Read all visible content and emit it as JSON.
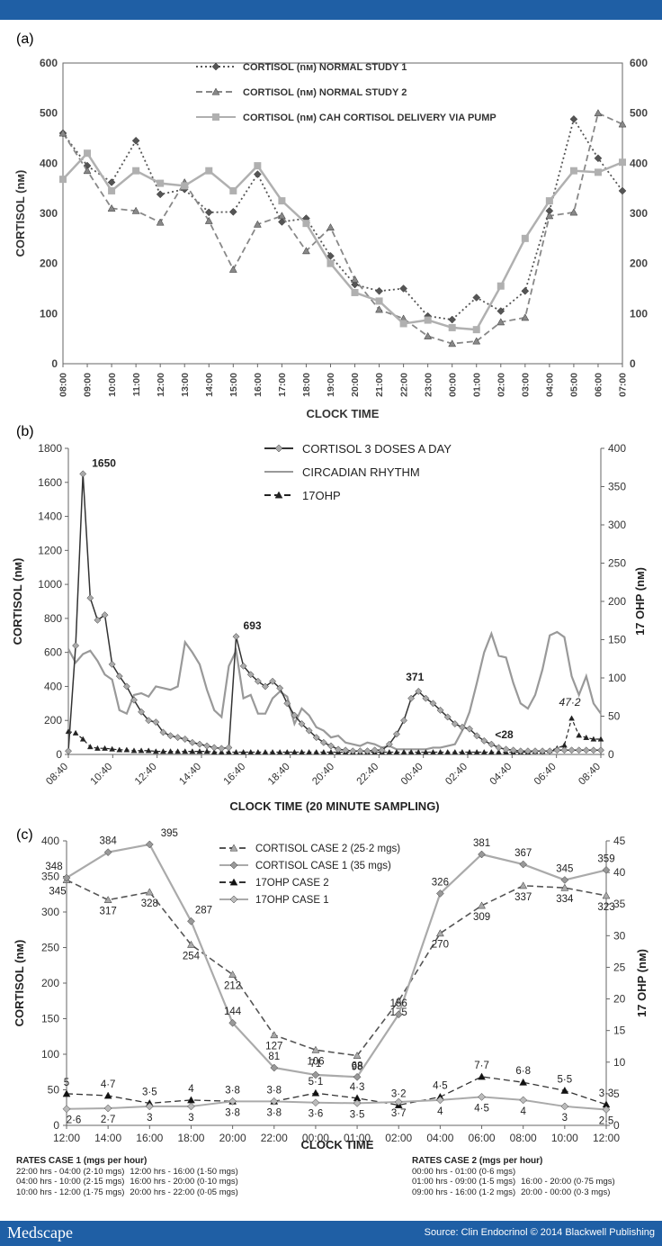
{
  "footer": {
    "brand": "Medscape",
    "source": "Source: Clin Endocrinol © 2014 Blackwell Publishing"
  },
  "colors": {
    "header_bar": "#1f5fa5",
    "series_dark": "#555555",
    "series_mid": "#888888",
    "series_light": "#b0b0b0"
  },
  "rates": {
    "case1": {
      "title": "RATES CASE 1 (mgs per hour)",
      "items": [
        "22:00 hrs - 04:00 (2·10 mgs)",
        "12:00 hrs - 16:00 (1·50 mgs)",
        "04:00 hrs - 10:00 (2·15 mgs)",
        "16:00 hrs - 20:00 (0·10 mgs)",
        "10:00 hrs - 12:00 (1·75 mgs)",
        "20:00 hrs - 22:00 (0·05 mgs)"
      ]
    },
    "case2": {
      "title": "RATES CASE 2 (mgs per hour)",
      "items": [
        "00:00 hrs - 01:00 (0·6 mgs)",
        "16:00 - 20:00 (0·75 mgs)",
        "01:00 hrs - 09:00 (1·5 mgs)",
        "20:00 - 00:00 (0·3 mgs)",
        "09:00 hrs - 16:00 (1·2 mgs)",
        ""
      ]
    }
  },
  "chart_data": [
    {
      "panel_label": "(a)",
      "type": "line",
      "xlabel": "CLOCK TIME",
      "ylabel": "CORTISOL (nм)",
      "categories": [
        "08:00",
        "09:00",
        "10:00",
        "11:00",
        "12:00",
        "13:00",
        "14:00",
        "15:00",
        "16:00",
        "17:00",
        "18:00",
        "19:00",
        "20:00",
        "21:00",
        "22:00",
        "23:00",
        "00:00",
        "01:00",
        "02:00",
        "03:00",
        "04:00",
        "05:00",
        "06:00",
        "07:00"
      ],
      "ylim": [
        0,
        600
      ],
      "yticks": [
        "0",
        "100",
        "200",
        "300",
        "400",
        "500",
        "600"
      ],
      "legend_position": "top-right",
      "series": [
        {
          "name": "CORTISOL (nм) NORMAL STUDY 1",
          "style": "dotted",
          "marker": "diamond",
          "color": "#555555",
          "values": [
            460,
            395,
            362,
            445,
            338,
            348,
            302,
            303,
            378,
            283,
            290,
            215,
            158,
            145,
            150,
            95,
            88,
            132,
            105,
            145,
            305,
            488,
            410,
            345
          ]
        },
        {
          "name": "CORTISOL (nм) NORMAL STUDY 2",
          "style": "dashed",
          "marker": "triangle",
          "color": "#888888",
          "values": [
            460,
            385,
            310,
            305,
            282,
            362,
            285,
            188,
            278,
            295,
            225,
            272,
            168,
            108,
            90,
            55,
            40,
            45,
            83,
            92,
            295,
            302,
            500,
            478
          ]
        },
        {
          "name": "CORTISOL (nм) CAH CORTISOL DELIVERY VIA PUMP",
          "style": "solid",
          "marker": "square",
          "color": "#b0b0b0",
          "values": [
            368,
            420,
            345,
            385,
            360,
            355,
            385,
            345,
            395,
            325,
            280,
            200,
            142,
            125,
            80,
            87,
            72,
            68,
            155,
            250,
            325,
            385,
            382,
            402
          ]
        }
      ]
    },
    {
      "panel_label": "(b)",
      "type": "line",
      "xlabel": "CLOCK TIME (20 MINUTE SAMPLING)",
      "ylabel": "CORTISOL (nм)",
      "ylabel_right": "17 OHP (nм)",
      "x_start": "08:40",
      "x_step_minutes": 20,
      "x_ticks": [
        "08:40",
        "10:40",
        "12:40",
        "14:40",
        "16:40",
        "18:40",
        "20:40",
        "22:40",
        "00:40",
        "02:40",
        "04:40",
        "06:40",
        "08:40"
      ],
      "ylim": [
        0,
        1800
      ],
      "yticks": [
        "0",
        "200",
        "400",
        "600",
        "800",
        "1000",
        "1200",
        "1400",
        "1600",
        "1800"
      ],
      "ylim_right": [
        0,
        400
      ],
      "yticks_right": [
        "0",
        "50",
        "100",
        "150",
        "200",
        "250",
        "300",
        "350",
        "400"
      ],
      "legend_position": "top-center",
      "annotations": [
        "1650",
        "693",
        "371",
        "<28",
        "47·2"
      ],
      "series": [
        {
          "name": "CORTISOL 3 DOSES A DAY",
          "style": "solid",
          "marker": "diamond",
          "color": "#333333",
          "axis": "left",
          "values": [
            20,
            640,
            1650,
            920,
            790,
            820,
            530,
            460,
            400,
            320,
            250,
            200,
            190,
            130,
            110,
            100,
            90,
            70,
            60,
            50,
            40,
            35,
            40,
            693,
            520,
            470,
            430,
            400,
            430,
            390,
            300,
            230,
            180,
            140,
            100,
            70,
            50,
            30,
            25,
            20,
            20,
            20,
            25,
            25,
            60,
            120,
            200,
            330,
            371,
            330,
            300,
            260,
            220,
            180,
            160,
            150,
            110,
            80,
            60,
            40,
            30,
            25,
            20,
            20,
            20,
            20,
            20,
            25,
            25,
            25,
            25,
            25,
            25,
            25
          ]
        },
        {
          "name": "CIRCADIAN RHYTHM",
          "style": "solid",
          "marker": "none",
          "color": "#999999",
          "axis": "left",
          "values": [
            620,
            540,
            590,
            610,
            550,
            470,
            440,
            260,
            240,
            350,
            360,
            340,
            400,
            390,
            380,
            400,
            660,
            600,
            530,
            380,
            260,
            220,
            520,
            610,
            330,
            350,
            240,
            240,
            330,
            370,
            340,
            180,
            270,
            230,
            160,
            140,
            100,
            110,
            70,
            60,
            50,
            70,
            60,
            40,
            50,
            30,
            30,
            30,
            30,
            30,
            40,
            40,
            50,
            60,
            140,
            250,
            420,
            600,
            710,
            580,
            570,
            420,
            300,
            270,
            350,
            500,
            700,
            720,
            690,
            460,
            350,
            460,
            300,
            240
          ]
        },
        {
          "name": "17OHP",
          "style": "dashed",
          "marker": "triangle",
          "color": "#222222",
          "axis": "right",
          "values": [
            30,
            28,
            20,
            10,
            8,
            8,
            7,
            6,
            6,
            5,
            5,
            5,
            4,
            4,
            4,
            4,
            4,
            4,
            4,
            4,
            3,
            3,
            3,
            3,
            3,
            3,
            3,
            3,
            3,
            3,
            3,
            3,
            3,
            3,
            3,
            3,
            3,
            3,
            3,
            3,
            3,
            3,
            3,
            3,
            3,
            3,
            3,
            3,
            3,
            3,
            3,
            3,
            3,
            3,
            3,
            3,
            3,
            3,
            3,
            3,
            3,
            3,
            3,
            3,
            4,
            4,
            5,
            8,
            12,
            47.2,
            25,
            22,
            20,
            20
          ]
        }
      ]
    },
    {
      "panel_label": "(c)",
      "type": "line",
      "xlabel": "CLOCK TIME",
      "ylabel": "CORTISOL (nм)",
      "ylabel_right": "17 OHP (nм)",
      "categories": [
        "12:00",
        "14:00",
        "16:00",
        "18:00",
        "20:00",
        "22:00",
        "00:00",
        "01:00",
        "02:00",
        "04:00",
        "06:00",
        "08:00",
        "10:00",
        "12:00"
      ],
      "ylim": [
        0,
        400
      ],
      "yticks": [
        "0",
        "50",
        "100",
        "150",
        "200",
        "250",
        "300",
        "350",
        "400"
      ],
      "ylim_right": [
        0,
        45
      ],
      "yticks_right": [
        "0",
        "5",
        "10",
        "15",
        "20",
        "25",
        "30",
        "35",
        "40",
        "45"
      ],
      "legend_position": "top-center",
      "series": [
        {
          "name": "CORTISOL CASE 2 (25·2 mgs)",
          "style": "dashed",
          "marker": "triangle",
          "color": "#555555",
          "axis": "left",
          "values": [
            345,
            317,
            328,
            254,
            212,
            127,
            106,
            98,
            175,
            270,
            309,
            337,
            334,
            323
          ],
          "labels": [
            "345",
            "317",
            "328",
            "254",
            "212",
            "127",
            "106",
            "98",
            "175",
            "270",
            "309",
            "337",
            "334",
            "323"
          ]
        },
        {
          "name": "CORTISOL CASE 1 (35 mgs)",
          "style": "solid",
          "marker": "diamond",
          "color": "#aaaaaa",
          "axis": "left",
          "values": [
            348,
            384,
            395,
            287,
            144,
            81,
            71,
            68,
            156,
            326,
            381,
            367,
            345,
            359
          ],
          "labels": [
            "348",
            "384",
            "395",
            "287",
            "144",
            "81",
            "71",
            "68",
            "156",
            "326",
            "381",
            "367",
            "345",
            "359"
          ]
        },
        {
          "name": "17OHP CASE 2",
          "style": "dashed",
          "marker": "triangle",
          "color": "#333333",
          "axis": "right",
          "values": [
            5,
            4.7,
            3.5,
            4,
            3.8,
            3.8,
            5.1,
            4.3,
            3.2,
            4.5,
            7.7,
            6.8,
            5.5,
            3.3
          ],
          "labels": [
            "5",
            "4·7",
            "3·5",
            "4",
            "3·8",
            "3·8",
            "5·1",
            "4·3",
            "3·2",
            "4·5",
            "7·7",
            "6·8",
            "5·5",
            "3·3"
          ]
        },
        {
          "name": "17OHP CASE 1",
          "style": "solid",
          "marker": "diamond",
          "color": "#aaaaaa",
          "axis": "right",
          "values": [
            2.6,
            2.7,
            3,
            3,
            3.8,
            3.8,
            3.6,
            3.5,
            3.7,
            4,
            4.5,
            4,
            3,
            2.5
          ],
          "labels": [
            "2·6",
            "2·7",
            "3",
            "3",
            "3·8",
            "3·8",
            "3·6",
            "3·5",
            "3·7",
            "4",
            "4·5",
            "4",
            "3",
            "2·5"
          ]
        }
      ]
    }
  ]
}
